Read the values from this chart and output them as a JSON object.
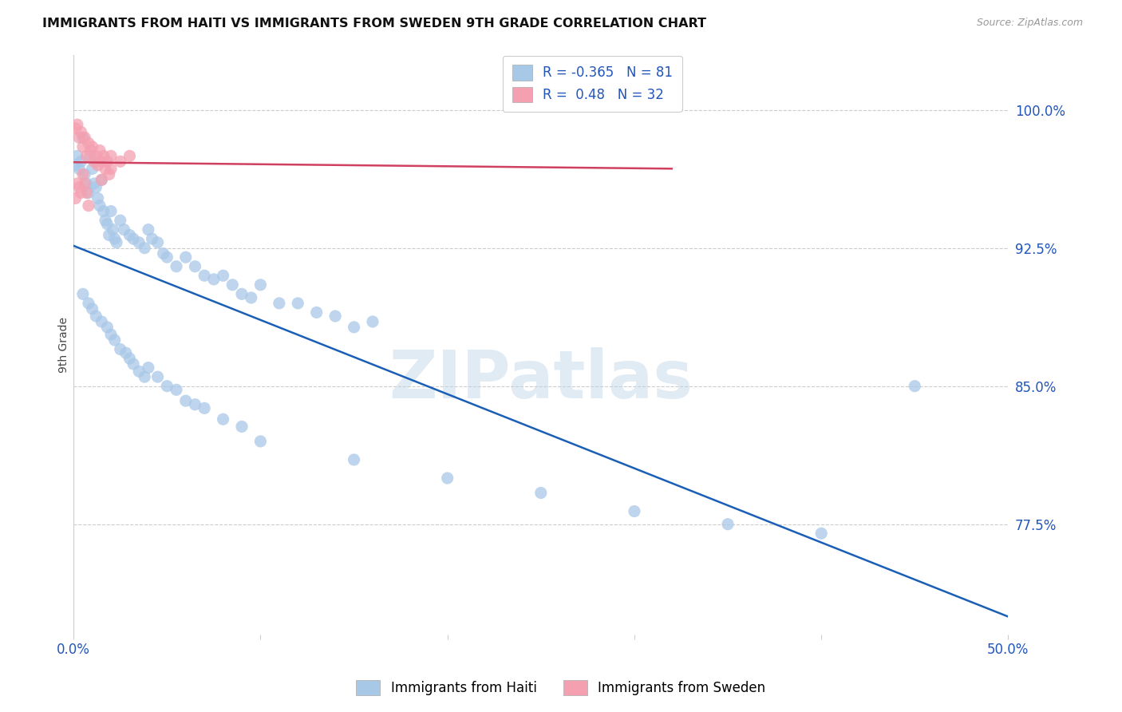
{
  "title": "IMMIGRANTS FROM HAITI VS IMMIGRANTS FROM SWEDEN 9TH GRADE CORRELATION CHART",
  "source": "Source: ZipAtlas.com",
  "ylabel": "9th Grade",
  "ytick_labels": [
    "100.0%",
    "92.5%",
    "85.0%",
    "77.5%"
  ],
  "ytick_values": [
    1.0,
    0.925,
    0.85,
    0.775
  ],
  "xlim": [
    0.0,
    0.5
  ],
  "ylim": [
    0.715,
    1.03
  ],
  "haiti_color": "#a8c8e8",
  "sweden_color": "#f4a0b0",
  "haiti_line_color": "#1a5fb5",
  "sweden_line_color": "#d04060",
  "haiti_R": -0.365,
  "haiti_N": 81,
  "sweden_R": 0.48,
  "sweden_N": 32,
  "legend_label_haiti": "Immigrants from Haiti",
  "legend_label_sweden": "Immigrants from Sweden",
  "watermark": "ZIPatlas",
  "haiti_x": [
    0.001,
    0.002,
    0.003,
    0.004,
    0.005,
    0.006,
    0.007,
    0.008,
    0.009,
    0.01,
    0.011,
    0.012,
    0.013,
    0.014,
    0.015,
    0.016,
    0.017,
    0.018,
    0.019,
    0.02,
    0.021,
    0.022,
    0.023,
    0.025,
    0.027,
    0.03,
    0.032,
    0.035,
    0.038,
    0.04,
    0.042,
    0.045,
    0.048,
    0.05,
    0.055,
    0.06,
    0.065,
    0.07,
    0.075,
    0.08,
    0.085,
    0.09,
    0.095,
    0.1,
    0.11,
    0.12,
    0.13,
    0.14,
    0.15,
    0.16,
    0.005,
    0.008,
    0.01,
    0.012,
    0.015,
    0.018,
    0.02,
    0.022,
    0.025,
    0.028,
    0.03,
    0.032,
    0.035,
    0.038,
    0.04,
    0.045,
    0.05,
    0.055,
    0.06,
    0.065,
    0.07,
    0.08,
    0.09,
    0.1,
    0.15,
    0.2,
    0.25,
    0.3,
    0.35,
    0.4,
    0.45
  ],
  "haiti_y": [
    0.97,
    0.975,
    0.968,
    0.972,
    0.985,
    0.965,
    0.96,
    0.955,
    0.975,
    0.968,
    0.96,
    0.958,
    0.952,
    0.948,
    0.962,
    0.945,
    0.94,
    0.938,
    0.932,
    0.945,
    0.935,
    0.93,
    0.928,
    0.94,
    0.935,
    0.932,
    0.93,
    0.928,
    0.925,
    0.935,
    0.93,
    0.928,
    0.922,
    0.92,
    0.915,
    0.92,
    0.915,
    0.91,
    0.908,
    0.91,
    0.905,
    0.9,
    0.898,
    0.905,
    0.895,
    0.895,
    0.89,
    0.888,
    0.882,
    0.885,
    0.9,
    0.895,
    0.892,
    0.888,
    0.885,
    0.882,
    0.878,
    0.875,
    0.87,
    0.868,
    0.865,
    0.862,
    0.858,
    0.855,
    0.86,
    0.855,
    0.85,
    0.848,
    0.842,
    0.84,
    0.838,
    0.832,
    0.828,
    0.82,
    0.81,
    0.8,
    0.792,
    0.782,
    0.775,
    0.77,
    0.85
  ],
  "sweden_x": [
    0.001,
    0.002,
    0.003,
    0.004,
    0.005,
    0.006,
    0.007,
    0.008,
    0.009,
    0.01,
    0.011,
    0.012,
    0.013,
    0.014,
    0.015,
    0.016,
    0.017,
    0.018,
    0.019,
    0.02,
    0.001,
    0.002,
    0.003,
    0.004,
    0.005,
    0.006,
    0.007,
    0.008,
    0.015,
    0.02,
    0.025,
    0.03
  ],
  "sweden_y": [
    0.99,
    0.992,
    0.985,
    0.988,
    0.98,
    0.985,
    0.975,
    0.982,
    0.978,
    0.98,
    0.972,
    0.975,
    0.97,
    0.978,
    0.972,
    0.975,
    0.968,
    0.972,
    0.965,
    0.975,
    0.952,
    0.96,
    0.958,
    0.955,
    0.965,
    0.96,
    0.955,
    0.948,
    0.962,
    0.968,
    0.972,
    0.975
  ]
}
